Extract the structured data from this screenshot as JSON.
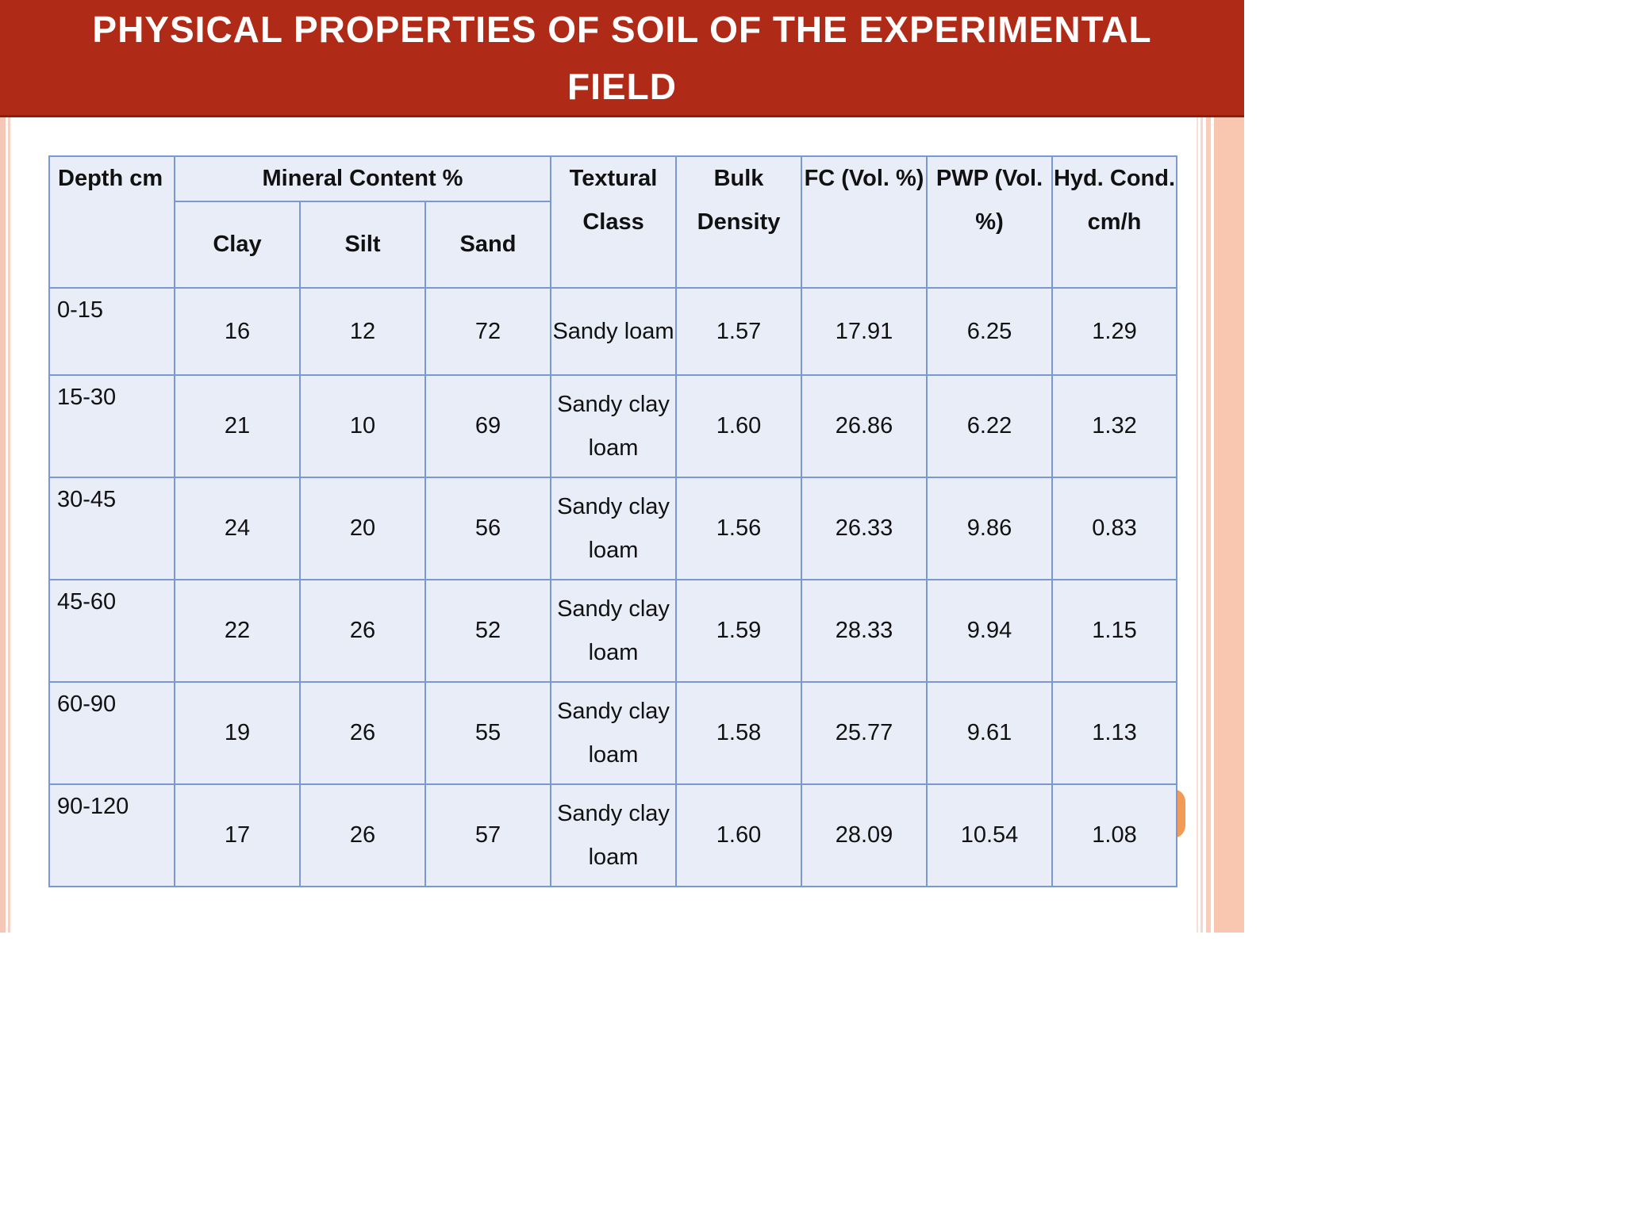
{
  "title": "PHYSICAL PROPERTIES OF SOIL OF THE EXPERIMENTAL FIELD",
  "headers": {
    "depth": "Depth cm",
    "mineral_content": "Mineral Content %",
    "clay": "Clay",
    "silt": "Silt",
    "sand": "Sand",
    "textural_class": "Textural Class",
    "bulk_density": "Bulk Density",
    "fc": "FC (Vol. %)",
    "pwp": "PWP (Vol. %)",
    "hyd_cond": "Hyd. Cond. cm/h"
  },
  "rows": [
    {
      "depth": "0-15",
      "clay": "16",
      "silt": "12",
      "sand": "72",
      "texture": "Sandy loam",
      "bulk_density": "1.57",
      "fc": "17.91",
      "pwp": "6.25",
      "hyd_cond": "1.29"
    },
    {
      "depth": "15-30",
      "clay": "21",
      "silt": "10",
      "sand": "69",
      "texture": "Sandy clay loam",
      "bulk_density": "1.60",
      "fc": "26.86",
      "pwp": "6.22",
      "hyd_cond": "1.32"
    },
    {
      "depth": "30-45",
      "clay": "24",
      "silt": "20",
      "sand": "56",
      "texture": "Sandy clay loam",
      "bulk_density": "1.56",
      "fc": "26.33",
      "pwp": "9.86",
      "hyd_cond": "0.83"
    },
    {
      "depth": "45-60",
      "clay": "22",
      "silt": "26",
      "sand": "52",
      "texture": "Sandy clay loam",
      "bulk_density": "1.59",
      "fc": "28.33",
      "pwp": "9.94",
      "hyd_cond": "1.15"
    },
    {
      "depth": "60-90",
      "clay": "19",
      "silt": "26",
      "sand": "55",
      "texture": "Sandy clay loam",
      "bulk_density": "1.58",
      "fc": "25.77",
      "pwp": "9.61",
      "hyd_cond": "1.13"
    },
    {
      "depth": "90-120",
      "clay": "17",
      "silt": "26",
      "sand": "57",
      "texture": "Sandy clay loam",
      "bulk_density": "1.60",
      "fc": "28.09",
      "pwp": "10.54",
      "hyd_cond": "1.08"
    }
  ],
  "colors": {
    "title_bar": "#b02a18",
    "table_fill": "#e9edf8",
    "table_border": "#7a99cf",
    "accent_stripe": "#f9c7b0"
  }
}
